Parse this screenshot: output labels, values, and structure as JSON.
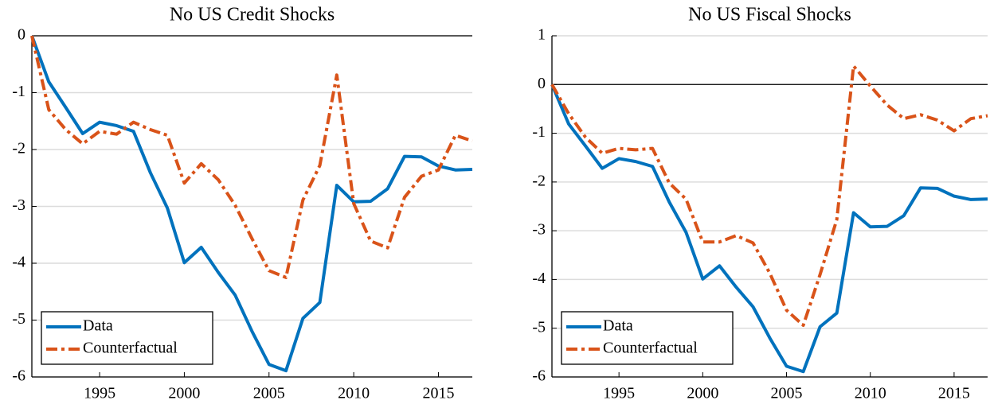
{
  "chart_data": [
    {
      "type": "line",
      "title": "No US Credit Shocks",
      "x": [
        1991,
        1992,
        1993,
        1994,
        1995,
        1996,
        1997,
        1998,
        1999,
        2000,
        2001,
        2002,
        2003,
        2004,
        2005,
        2006,
        2007,
        2008,
        2009,
        2010,
        2011,
        2012,
        2013,
        2014,
        2015,
        2016,
        2017
      ],
      "series": [
        {
          "name": "Data",
          "color": "#0072bd",
          "dash": "solid",
          "values": [
            0,
            -0.81,
            -1.26,
            -1.72,
            -1.52,
            -1.58,
            -1.68,
            -2.41,
            -3.03,
            -3.99,
            -3.72,
            -4.16,
            -4.56,
            -5.2,
            -5.78,
            -5.89,
            -4.97,
            -4.69,
            -2.63,
            -2.92,
            -2.91,
            -2.69,
            -2.12,
            -2.13,
            -2.29,
            -2.36,
            -2.35
          ]
        },
        {
          "name": "Counterfactual",
          "color": "#d95319",
          "dash": "dashdot",
          "values": [
            0,
            -1.3,
            -1.65,
            -1.9,
            -1.68,
            -1.73,
            -1.52,
            -1.65,
            -1.75,
            -2.59,
            -2.25,
            -2.53,
            -2.98,
            -3.57,
            -4.13,
            -4.25,
            -2.89,
            -2.28,
            -0.69,
            -2.95,
            -3.61,
            -3.73,
            -2.84,
            -2.47,
            -2.36,
            -1.75,
            -1.85
          ]
        }
      ],
      "xlim": [
        1991,
        2017
      ],
      "xticks": [
        1995,
        2000,
        2005,
        2010,
        2015
      ],
      "ylim": [
        -6,
        0
      ],
      "yticks": [
        -6,
        -5,
        -4,
        -3,
        -2,
        -1,
        0
      ],
      "grid": true,
      "zero_line": true,
      "legend": "lower left"
    },
    {
      "type": "line",
      "title": "No US Fiscal Shocks",
      "x": [
        1991,
        1992,
        1993,
        1994,
        1995,
        1996,
        1997,
        1998,
        1999,
        2000,
        2001,
        2002,
        2003,
        2004,
        2005,
        2006,
        2007,
        2008,
        2009,
        2010,
        2011,
        2012,
        2013,
        2014,
        2015,
        2016,
        2017
      ],
      "series": [
        {
          "name": "Data",
          "color": "#0072bd",
          "dash": "solid",
          "values": [
            0,
            -0.81,
            -1.26,
            -1.72,
            -1.52,
            -1.58,
            -1.68,
            -2.41,
            -3.03,
            -3.99,
            -3.72,
            -4.16,
            -4.56,
            -5.2,
            -5.78,
            -5.89,
            -4.97,
            -4.69,
            -2.63,
            -2.92,
            -2.91,
            -2.69,
            -2.12,
            -2.13,
            -2.29,
            -2.36,
            -2.35
          ]
        },
        {
          "name": "Counterfactual",
          "color": "#d95319",
          "dash": "dashdot",
          "values": [
            0,
            -0.6,
            -1.08,
            -1.41,
            -1.31,
            -1.34,
            -1.31,
            -2.02,
            -2.35,
            -3.23,
            -3.23,
            -3.1,
            -3.25,
            -3.87,
            -4.63,
            -4.94,
            -3.9,
            -2.77,
            0.38,
            -0.03,
            -0.42,
            -0.7,
            -0.62,
            -0.73,
            -0.95,
            -0.7,
            -0.64
          ]
        }
      ],
      "xlim": [
        1991,
        2017
      ],
      "xticks": [
        1995,
        2000,
        2005,
        2010,
        2015
      ],
      "ylim": [
        -6,
        1
      ],
      "yticks": [
        -6,
        -5,
        -4,
        -3,
        -2,
        -1,
        0,
        1
      ],
      "grid": true,
      "zero_line": true,
      "legend": "lower left"
    }
  ]
}
